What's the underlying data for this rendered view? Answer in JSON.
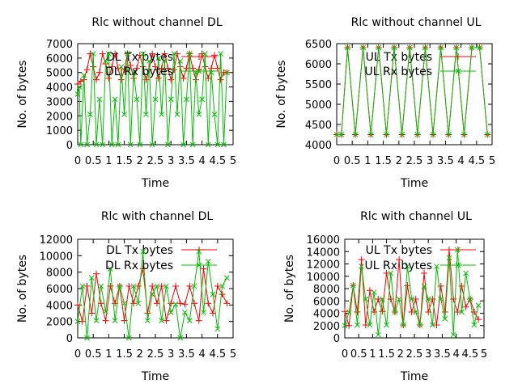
{
  "chart_data": [
    {
      "type": "line",
      "title": "Rlc without channel DL",
      "xlabel": "Time",
      "ylabel": "No. of bytes",
      "xlim": [
        0,
        5
      ],
      "ylim": [
        0,
        7000
      ],
      "xticks": [
        "0",
        "0.5",
        "1",
        "1.5",
        "2",
        "2.5",
        "3",
        "3.5",
        "4",
        "4.5",
        "5"
      ],
      "yticks": [
        "0",
        "1000",
        "2000",
        "3000",
        "4000",
        "5000",
        "6000",
        "7000"
      ],
      "grid": false,
      "legend_position": "top",
      "series": [
        {
          "name": "DL Tx bytes",
          "color": "#ff0000",
          "marker": "plus",
          "x": [
            0,
            0.1,
            0.2,
            0.3,
            0.4,
            0.5,
            0.6,
            0.7,
            0.8,
            0.9,
            1.0,
            1.1,
            1.2,
            1.3,
            1.4,
            1.5,
            1.6,
            1.7,
            1.8,
            1.9,
            2.0,
            2.1,
            2.2,
            2.3,
            2.4,
            2.5,
            2.6,
            2.7,
            2.8,
            2.9,
            3.0,
            3.1,
            3.2,
            3.3,
            3.4,
            3.5,
            3.6,
            3.7,
            3.8,
            3.9,
            4.0,
            4.1,
            4.2,
            4.3,
            4.4,
            4.5,
            4.6,
            4.7,
            4.8
          ],
          "y": [
            4200,
            4400,
            4500,
            5200,
            6300,
            5400,
            4500,
            5000,
            6300,
            5600,
            4600,
            5400,
            6300,
            5300,
            4500,
            5200,
            6300,
            5500,
            4600,
            5300,
            6200,
            5400,
            4500,
            5200,
            6300,
            5400,
            4600,
            5300,
            6300,
            5300,
            4500,
            5200,
            6300,
            5400,
            4600,
            5300,
            6300,
            5300,
            4500,
            5200,
            6300,
            5400,
            4600,
            5300,
            6200,
            5300,
            4500,
            5000,
            5000
          ]
        },
        {
          "name": "DL Rx bytes",
          "color": "#00c000",
          "marker": "cross",
          "x": [
            0,
            0.05,
            0.1,
            0.2,
            0.3,
            0.4,
            0.5,
            0.6,
            0.7,
            0.8,
            0.9,
            1.0,
            1.1,
            1.2,
            1.3,
            1.4,
            1.5,
            1.6,
            1.7,
            1.8,
            1.9,
            2.0,
            2.1,
            2.2,
            2.3,
            2.4,
            2.5,
            2.6,
            2.7,
            2.8,
            2.9,
            3.0,
            3.1,
            3.2,
            3.3,
            3.4,
            3.5,
            3.6,
            3.7,
            3.8,
            3.9,
            4.0,
            4.1,
            4.2,
            4.3,
            4.4,
            4.5,
            4.6,
            4.7,
            4.8
          ],
          "y": [
            3500,
            4000,
            0,
            4800,
            0,
            2100,
            6300,
            0,
            3150,
            0,
            5800,
            6300,
            0,
            3150,
            0,
            5400,
            2100,
            6300,
            0,
            5000,
            3150,
            0,
            6300,
            2100,
            5800,
            0,
            3150,
            6000,
            2100,
            5800,
            0,
            3150,
            6300,
            2100,
            5800,
            0,
            3150,
            6300,
            0,
            5000,
            2100,
            3150,
            6300,
            0,
            5000,
            2100,
            0,
            6300,
            0,
            5000
          ]
        }
      ]
    },
    {
      "type": "line",
      "title": "Rlc without channel UL",
      "xlabel": "Time",
      "ylabel": "No. of bytes",
      "xlim": [
        0,
        5
      ],
      "ylim": [
        4000,
        6500
      ],
      "xticks": [
        "0",
        "0.5",
        "1",
        "1.5",
        "2",
        "2.5",
        "3",
        "3.5",
        "4",
        "4.5",
        "5"
      ],
      "yticks": [
        "4000",
        "4500",
        "5000",
        "5500",
        "6000",
        "6500"
      ],
      "grid": false,
      "legend_position": "top",
      "series": [
        {
          "name": "UL Tx bytes",
          "color": "#ff0000",
          "marker": "plus",
          "x": [
            0,
            0.15,
            0.35,
            0.6,
            0.85,
            1.1,
            1.35,
            1.6,
            1.85,
            2.1,
            2.35,
            2.6,
            2.85,
            3.1,
            3.35,
            3.6,
            3.85,
            4.1,
            4.35,
            4.6,
            4.85
          ],
          "y": [
            4250,
            4250,
            6400,
            4250,
            6400,
            4250,
            6400,
            4250,
            6400,
            4250,
            6400,
            4250,
            6400,
            4250,
            6400,
            4250,
            6400,
            4250,
            6400,
            6400,
            4250
          ]
        },
        {
          "name": "UL Rx bytes",
          "color": "#00c000",
          "marker": "cross",
          "x": [
            0,
            0.15,
            0.35,
            0.6,
            0.85,
            1.1,
            1.35,
            1.6,
            1.85,
            2.1,
            2.35,
            2.6,
            2.85,
            3.1,
            3.35,
            3.6,
            3.85,
            4.1,
            4.35,
            4.6,
            4.85
          ],
          "y": [
            4250,
            4250,
            6400,
            4250,
            6400,
            4250,
            6400,
            4250,
            6400,
            4250,
            6400,
            4250,
            6400,
            4250,
            6400,
            4250,
            6400,
            4250,
            6400,
            6400,
            4250
          ]
        }
      ]
    },
    {
      "type": "line",
      "title": "Rlc with channel DL",
      "xlabel": "Time",
      "ylabel": "No. of bytes",
      "xlim": [
        0,
        5
      ],
      "ylim": [
        0,
        12000
      ],
      "xticks": [
        "0",
        "0.5",
        "1",
        "1.5",
        "2",
        "2.5",
        "3",
        "3.5",
        "4",
        "4.5",
        "5"
      ],
      "yticks": [
        "0",
        "2000",
        "4000",
        "6000",
        "8000",
        "10000",
        "12000"
      ],
      "grid": false,
      "legend_position": "top",
      "series": [
        {
          "name": "DL Tx bytes",
          "color": "#ff0000",
          "marker": "plus",
          "x": [
            0,
            0.15,
            0.3,
            0.45,
            0.6,
            0.75,
            0.9,
            1.05,
            1.2,
            1.35,
            1.5,
            1.65,
            1.8,
            1.95,
            2.1,
            2.25,
            2.4,
            2.55,
            2.7,
            2.85,
            3.0,
            3.15,
            3.3,
            3.45,
            3.6,
            3.75,
            3.9,
            4.05,
            4.2,
            4.35,
            4.5,
            4.65,
            4.8
          ],
          "y": [
            4000,
            2000,
            6300,
            3000,
            7800,
            4200,
            2100,
            6300,
            4200,
            6300,
            2100,
            6300,
            4200,
            6300,
            8400,
            3000,
            6300,
            4200,
            6300,
            2100,
            4200,
            6300,
            4200,
            4100,
            6300,
            4200,
            2100,
            8400,
            4200,
            3000,
            6300,
            5300,
            4200
          ]
        },
        {
          "name": "DL Rx bytes",
          "color": "#00c000",
          "marker": "cross",
          "x": [
            0,
            0.15,
            0.3,
            0.45,
            0.6,
            0.75,
            0.9,
            1.05,
            1.2,
            1.35,
            1.5,
            1.65,
            1.8,
            1.95,
            2.1,
            2.25,
            2.4,
            2.55,
            2.7,
            2.85,
            3.0,
            3.15,
            3.3,
            3.45,
            3.6,
            3.75,
            3.9,
            4.05,
            4.2,
            4.35,
            4.5,
            4.65,
            4.8
          ],
          "y": [
            2000,
            6300,
            0,
            7300,
            2100,
            6300,
            3200,
            8400,
            2100,
            6300,
            4200,
            0,
            6300,
            4200,
            10500,
            2100,
            5300,
            6300,
            2100,
            6300,
            3100,
            4100,
            0,
            3100,
            2100,
            6300,
            10500,
            3100,
            9300,
            5300,
            1100,
            6300,
            7300
          ]
        }
      ]
    },
    {
      "type": "line",
      "title": "Rlc with channel UL",
      "xlabel": "Time",
      "ylabel": "No. of bytes",
      "xlim": [
        0,
        5
      ],
      "ylim": [
        0,
        16000
      ],
      "xticks": [
        "0",
        "0.5",
        "1",
        "1.5",
        "2",
        "2.5",
        "3",
        "3.5",
        "4",
        "4.5",
        "5"
      ],
      "yticks": [
        "0",
        "2000",
        "4000",
        "6000",
        "8000",
        "10000",
        "12000",
        "14000",
        "16000"
      ],
      "grid": false,
      "legend_position": "top",
      "series": [
        {
          "name": "UL Tx bytes",
          "color": "#ff0000",
          "marker": "plus",
          "x": [
            0,
            0.15,
            0.3,
            0.45,
            0.6,
            0.75,
            0.9,
            1.05,
            1.2,
            1.35,
            1.5,
            1.65,
            1.8,
            1.95,
            2.1,
            2.25,
            2.4,
            2.55,
            2.7,
            2.85,
            3.0,
            3.15,
            3.3,
            3.45,
            3.6,
            3.75,
            3.9,
            4.05,
            4.2,
            4.35,
            4.5,
            4.65,
            4.8
          ],
          "y": [
            4300,
            2000,
            8500,
            4200,
            12700,
            2100,
            7700,
            4200,
            6300,
            4300,
            10500,
            6300,
            4200,
            12700,
            2100,
            8500,
            4200,
            6300,
            2100,
            10500,
            4200,
            6300,
            2100,
            8400,
            4200,
            14300,
            6300,
            4200,
            8400,
            5000,
            6300,
            4200,
            3000
          ]
        },
        {
          "name": "UL Rx bytes",
          "color": "#00c000",
          "marker": "cross",
          "x": [
            0,
            0.15,
            0.3,
            0.45,
            0.6,
            0.75,
            0.9,
            1.05,
            1.2,
            1.35,
            1.5,
            1.65,
            1.8,
            1.95,
            2.1,
            2.25,
            2.4,
            2.55,
            2.7,
            2.85,
            3.0,
            3.15,
            3.3,
            3.45,
            3.6,
            3.75,
            3.9,
            4.05,
            4.2,
            4.35,
            4.5,
            4.65,
            4.8
          ],
          "y": [
            2000,
            4200,
            8500,
            2100,
            11600,
            6300,
            2100,
            7400,
            500,
            6300,
            2100,
            10500,
            4200,
            6300,
            2100,
            11600,
            6300,
            4200,
            2100,
            8400,
            6300,
            2100,
            11600,
            6300,
            3100,
            13000,
            500,
            14300,
            4200,
            10500,
            6300,
            2100,
            5300
          ]
        }
      ]
    }
  ]
}
